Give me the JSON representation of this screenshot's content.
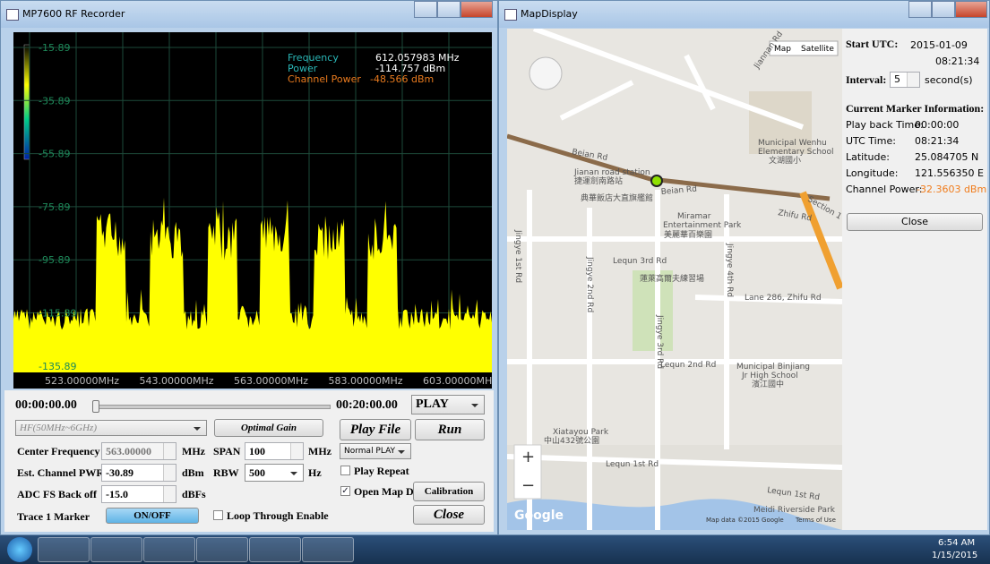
{
  "recorder": {
    "title": "MP7600 RF Recorder",
    "plot": {
      "y_labels": [
        "-15.89",
        "-35.89",
        "-55.89",
        "-75.89",
        "-95.89",
        "-115.89",
        "-135.89"
      ],
      "x_labels": [
        "523.00000MHz",
        "543.00000MHz",
        "563.00000MHz",
        "583.00000MHz",
        "603.00000MHz"
      ],
      "readout": {
        "frequency_label": "Frequency",
        "frequency_value": "612.057983 MHz",
        "power_label": "Power",
        "power_value": "-114.757 dBm",
        "channel_power_label": "Channel Power",
        "channel_power_value": "-48.566 dBm"
      }
    },
    "controls": {
      "start_time": "00:00:00.00",
      "end_time": "00:20:00.00",
      "play_mode": "PLAY",
      "band": "HF(50MHz~6GHz)",
      "optimal_gain": "Optimal Gain",
      "play_file": "Play File",
      "run": "Run",
      "center_frequency_label": "Center Frequency",
      "center_frequency": "563.00000",
      "center_frequency_unit": "MHz",
      "span_label": "SPAN",
      "span": "100",
      "span_unit": "MHz",
      "normal_play": "Normal PLAY",
      "channel_pwr_label": "Est. Channel PWR",
      "channel_pwr": "-30.89",
      "channel_pwr_unit": "dBm",
      "rbw_label": "RBW",
      "rbw": "500",
      "rbw_unit": "Hz",
      "play_repeat": "Play Repeat",
      "adc_label": "ADC FS Back off",
      "adc": "-15.0",
      "adc_unit": "dBFs",
      "open_map": "Open Map D",
      "calibration": "Calibration",
      "trace_label": "Trace 1 Marker",
      "on_off": "ON/OFF",
      "loop_through": "Loop Through Enable",
      "close": "Close"
    }
  },
  "map_window": {
    "title": "MapDisplay",
    "map": {
      "map_button": "Map",
      "satellite_button": "Satellite",
      "labels": [
        "Jiannan Rd",
        "Beian Rd",
        "Jianan road station",
        "捷運劍南路站",
        "典華飯店大直旗艦館",
        "Beian Rd",
        "Municipal Wenhu",
        "Elementary School",
        "文湖國小",
        "Zhifu Rd",
        "Section 1",
        "Miramar",
        "Entertainment Park",
        "美麗華百樂園",
        "Jingye 1st Rd",
        "Jingye 2nd Rd",
        "Lequn 3rd Rd",
        "蓮萊高爾夫練習場",
        "Jingye 4th Rd",
        "Lane 286, Zhifu Rd",
        "Jingye 3rd Rd",
        "Lequn 2nd Rd",
        "Municipal Binjiang",
        "Jr High School",
        "濱江國中",
        "Xiatayou Park",
        "中山432號公園",
        "Lequn 1st Rd",
        "Lequn 1st Rd",
        "Meidi Riverside Park"
      ],
      "zoom_in": "+",
      "zoom_out": "−",
      "logo": "Google",
      "attribution": "Map data ©2015 Google",
      "terms": "Terms of Use"
    },
    "panel": {
      "start_utc_label": "Start UTC:",
      "start_date": "2015-01-09",
      "start_time": "08:21:34",
      "interval_label": "Interval:",
      "interval": "5",
      "interval_unit": "second(s)",
      "info_title": "Current Marker Information:",
      "rows": [
        [
          "Play back Time:",
          "00:00:00"
        ],
        [
          "UTC Time:",
          "08:21:34"
        ],
        [
          "Latitude:",
          "25.084705 N"
        ],
        [
          "Longitude:",
          "121.556350 E"
        ],
        [
          "Channel Power:",
          "-32.3603 dBm"
        ]
      ],
      "close": "Close"
    }
  },
  "taskbar": {
    "time": "6:54 AM",
    "date": "1/15/2015"
  }
}
